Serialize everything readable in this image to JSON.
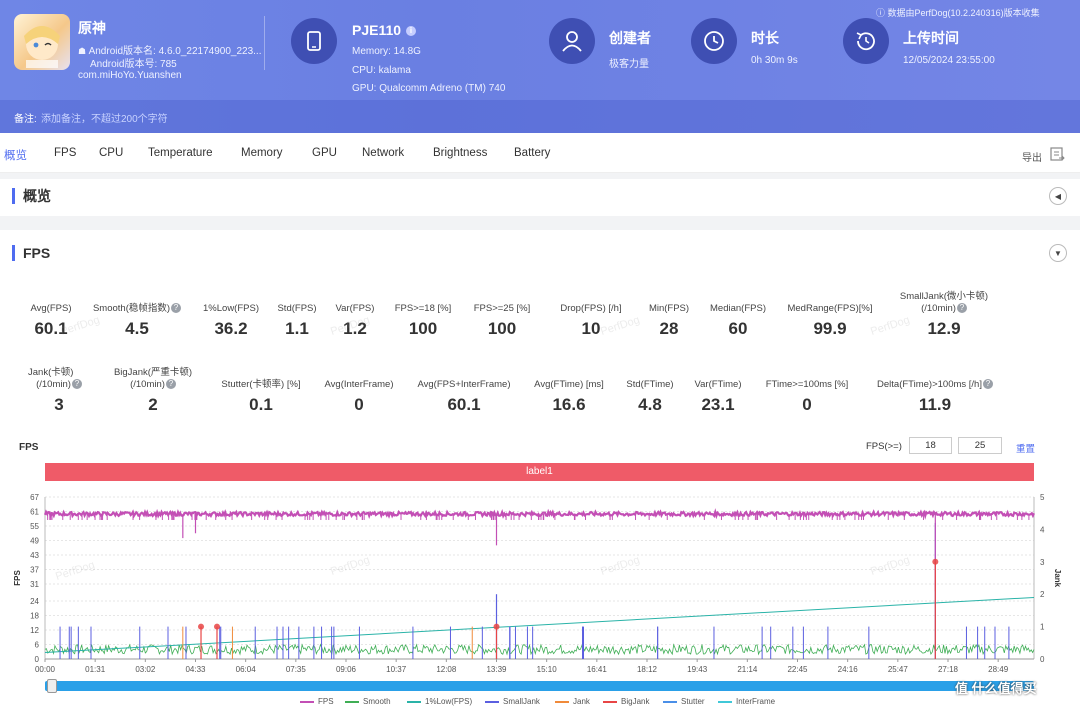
{
  "app": {
    "name": "原神",
    "version": "Android版本名: 4.6.0_22174900_223...",
    "version_code": "Android版本号: 785",
    "package": "com.miHoYo.Yuanshen"
  },
  "device": {
    "name": "PJE110",
    "memory": "Memory: 14.8G",
    "cpu": "CPU: kalama",
    "gpu": "GPU: Qualcomm Adreno (TM) 740"
  },
  "creator": {
    "title": "创建者",
    "value": "极客力量"
  },
  "duration": {
    "title": "时长",
    "value": "0h 30m 9s"
  },
  "upload": {
    "title": "上传时间",
    "value": "12/05/2024 23:55:00"
  },
  "source_note": "数据由PerfDog(10.2.240316)版本收集",
  "note": {
    "label": "备注:",
    "placeholder": "添加备注，不超过200个字符"
  },
  "tabs": [
    "概览",
    "FPS",
    "CPU",
    "Temperature",
    "Memory",
    "GPU",
    "Network",
    "Brightness",
    "Battery"
  ],
  "export_label": "导出",
  "sections": {
    "overview": "概览",
    "fps": "FPS"
  },
  "stats_row1": [
    {
      "label": "Avg(FPS)",
      "value": "60.1"
    },
    {
      "label": "Smooth(稳帧指数)",
      "value": "4.5"
    },
    {
      "label": "1%Low(FPS)",
      "value": "36.2"
    },
    {
      "label": "Std(FPS)",
      "value": "1.1"
    },
    {
      "label": "Var(FPS)",
      "value": "1.2"
    },
    {
      "label": "FPS>=18 [%]",
      "value": "100"
    },
    {
      "label": "FPS>=25 [%]",
      "value": "100"
    },
    {
      "label": "Drop(FPS) [/h]",
      "value": "10"
    },
    {
      "label": "Min(FPS)",
      "value": "28"
    },
    {
      "label": "Median(FPS)",
      "value": "60"
    },
    {
      "label": "MedRange(FPS)[%]",
      "value": "99.9"
    },
    {
      "label": "SmallJank(微小卡顿)",
      "label2": "(/10min)",
      "value": "12.9"
    }
  ],
  "stats_row2": [
    {
      "label": "Jank(卡顿)",
      "label2": "(/10min)",
      "value": "3"
    },
    {
      "label": "BigJank(严重卡顿)",
      "label2": "(/10min)",
      "value": "2"
    },
    {
      "label": "Stutter(卡顿率) [%]",
      "value": "0.1"
    },
    {
      "label": "Avg(InterFrame)",
      "value": "0"
    },
    {
      "label": "Avg(FPS+InterFrame)",
      "value": "60.1"
    },
    {
      "label": "Avg(FTime) [ms]",
      "value": "16.6"
    },
    {
      "label": "Std(FTime)",
      "value": "4.8"
    },
    {
      "label": "Var(FTime)",
      "value": "23.1"
    },
    {
      "label": "FTime>=100ms [%]",
      "value": "0"
    },
    {
      "label": "Delta(FTime)>100ms [/h]",
      "value": "11.9"
    }
  ],
  "chart_controls": {
    "title": "FPS",
    "threshold_label": "FPS(>=)",
    "threshold1": "18",
    "threshold2": "25",
    "reset": "重置",
    "segment_label": "label1"
  },
  "watermark": "PerfDog",
  "corner_logo": "值 什么值得买",
  "chart_data": {
    "type": "line",
    "ylabel": "FPS",
    "y2label": "Jank",
    "yticks": [
      0,
      6,
      12,
      18,
      24,
      31,
      37,
      43,
      49,
      55,
      61,
      67
    ],
    "y2ticks": [
      0,
      1,
      2,
      3,
      4,
      5
    ],
    "ylim": [
      0,
      67
    ],
    "y2lim": [
      0,
      5
    ],
    "xticks": [
      "00:00",
      "01:31",
      "03:02",
      "04:33",
      "06:04",
      "07:35",
      "09:06",
      "10:37",
      "12:08",
      "13:39",
      "15:10",
      "16:41",
      "18:12",
      "19:43",
      "21:14",
      "22:45",
      "24:16",
      "25:47",
      "27:18",
      "28:49"
    ],
    "legend": [
      "FPS",
      "Smooth",
      "1%Low(FPS)",
      "SmallJank",
      "Jank",
      "BigJank",
      "Stutter",
      "InterFrame"
    ],
    "colors": {
      "FPS": "#c34fb5",
      "Smooth": "#3fae55",
      "1%Low(FPS)": "#2ab3a8",
      "SmallJank": "#5b5fe0",
      "Jank": "#f08a3a",
      "BigJank": "#e84545",
      "Stutter": "#4a8fe8",
      "InterFrame": "#40c8d8"
    },
    "fps_typical": 60,
    "fps_dips": [
      {
        "t": "04:10",
        "v": 50
      },
      {
        "t": "04:33",
        "v": 52
      },
      {
        "t": "13:39",
        "v": 47
      },
      {
        "t": "26:55",
        "v": 28
      }
    ],
    "low1_line": {
      "start": 0,
      "end": 24.5
    },
    "smooth_typical": 4,
    "big_jank": [
      {
        "t": "04:43",
        "v": 1
      },
      {
        "t": "05:12",
        "v": 1
      },
      {
        "t": "13:39",
        "v": 1
      },
      {
        "t": "26:55",
        "v": 3
      }
    ]
  }
}
